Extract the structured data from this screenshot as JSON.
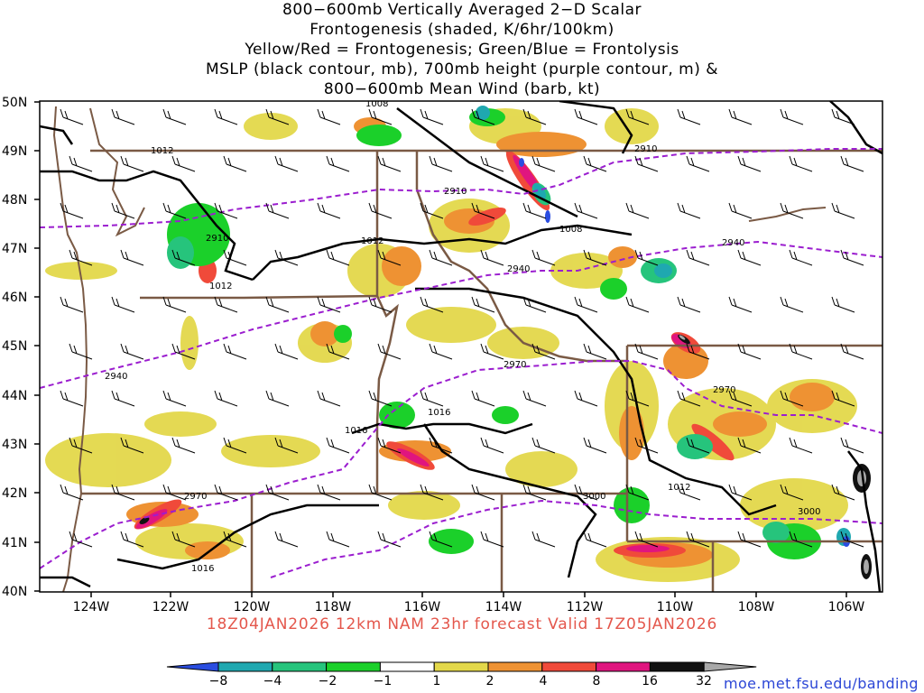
{
  "title": {
    "line1": "800−600mb Vertically Averaged 2−D Scalar",
    "line2": "Frontogenesis (shaded, K/6hr/100km)",
    "line3": "Yellow/Red = Frontogenesis;  Green/Blue = Frontolysis",
    "line4": "MSLP (black contour, mb), 700mb height (purple contour, m) &",
    "line5": "800−600mb Mean Wind (barb, kt)"
  },
  "axes": {
    "lat_labels": [
      "50N",
      "49N",
      "48N",
      "47N",
      "46N",
      "45N",
      "44N",
      "43N",
      "42N",
      "41N",
      "40N"
    ],
    "lon_labels": [
      "124W",
      "122W",
      "120W",
      "118W",
      "116W",
      "114W",
      "112W",
      "110W",
      "108W",
      "106W"
    ]
  },
  "contours": {
    "mslp_labels": [
      "1008",
      "1012",
      "1012",
      "1012",
      "1008",
      "1016",
      "1016",
      "1012",
      "1016"
    ],
    "height_labels": [
      "2910",
      "2910",
      "2910",
      "2940",
      "2940",
      "2940",
      "2970",
      "2970",
      "2970",
      "3000",
      "3000"
    ]
  },
  "colorbar": {
    "labels": [
      "−8",
      "−4",
      "−2",
      "−1",
      "1",
      "2",
      "4",
      "8",
      "16",
      "32"
    ],
    "colors": [
      "#2a4de0",
      "#1fa8b0",
      "#26c47c",
      "#1bd02a",
      "#ffffff",
      "#e3d84a",
      "#ee9233",
      "#f04a3a",
      "#e0157f",
      "#111111",
      "#a8a8a8"
    ]
  },
  "footer": "18Z04JAN2026  12km NAM 23hr forecast Valid  17Z05JAN2026",
  "credit": "moe.met.fsu.edu/banding"
}
